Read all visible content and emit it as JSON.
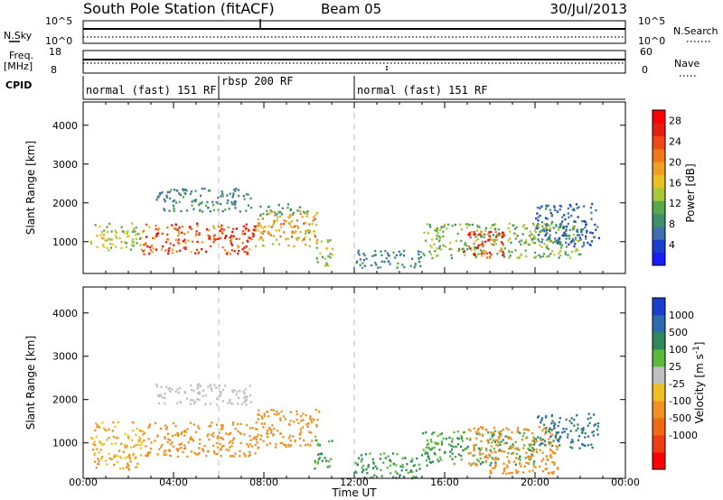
{
  "header": {
    "station": "South Pole Station (fitACF)",
    "beam": "Beam 05",
    "date": "30/Jul/2013"
  },
  "strip_labels": {
    "nsky": "N.Sky",
    "nsky_hi": "10^5",
    "nsky_lo": "10^0",
    "nsearch": "N.Search",
    "nsearch_hi": "10^5",
    "nsearch_lo": "10^0",
    "freq": "Freq.",
    "freq_unit": "[MHz]",
    "freq_hi": "18",
    "freq_lo": "8",
    "nave": "Nave",
    "nave_hi": "60",
    "nave_lo": "0",
    "cpid": "CPID"
  },
  "cpid_segments": [
    {
      "label": "normal (fast) 151 RF",
      "start_hour": 0.0,
      "end_hour": 6.0
    },
    {
      "label": "rbsp 200 RF",
      "start_hour": 6.0,
      "end_hour": 12.0
    },
    {
      "label": "normal (fast) 151 RF",
      "start_hour": 12.0,
      "end_hour": 24.0
    }
  ],
  "chart_data": [
    {
      "type": "heatmap",
      "name": "power",
      "ylabel": "Slant Range [km]",
      "xlabel": "Time UT",
      "x_ticks": [
        "00:00",
        "04:00",
        "08:00",
        "12:00",
        "16:00",
        "20:00",
        "00:00"
      ],
      "x_range_hours": [
        0,
        24
      ],
      "y_ticks": [
        1000,
        2000,
        3000,
        4000
      ],
      "ylim": [
        180,
        4600
      ],
      "colorbar_label": "Power [dB]",
      "colorbar_ticks": [
        4,
        8,
        12,
        16,
        20,
        24,
        28
      ],
      "colorbar_range": [
        0,
        30
      ],
      "colors": [
        "#1a1aff",
        "#1a3fd0",
        "#3f6eb2",
        "#3f8f6a",
        "#5aa84a",
        "#a8c83a",
        "#e8c020",
        "#f0a020",
        "#f07818",
        "#f04a14",
        "#e61e12",
        "#ff0000"
      ],
      "regions": [
        {
          "t0": 0.3,
          "t1": 2.6,
          "r0": 800,
          "r1": 1500,
          "value": 14
        },
        {
          "t0": 2.6,
          "t1": 7.6,
          "r0": 700,
          "r1": 1500,
          "value": 24
        },
        {
          "t0": 7.6,
          "t1": 10.4,
          "r0": 900,
          "r1": 1800,
          "value": 18
        },
        {
          "t0": 3.2,
          "t1": 7.4,
          "r0": 1800,
          "r1": 2400,
          "value": 8
        },
        {
          "t0": 7.8,
          "t1": 10.0,
          "r0": 1700,
          "r1": 2000,
          "value": 10
        },
        {
          "t0": 10.2,
          "t1": 11.0,
          "r0": 400,
          "r1": 1100,
          "value": 14
        },
        {
          "t0": 12.0,
          "t1": 15.0,
          "r0": 350,
          "r1": 800,
          "value": 8
        },
        {
          "t0": 15.0,
          "t1": 22.0,
          "r0": 600,
          "r1": 1500,
          "value": 12
        },
        {
          "t0": 16.8,
          "t1": 18.6,
          "r0": 600,
          "r1": 1300,
          "value": 26
        },
        {
          "t0": 20.0,
          "t1": 22.8,
          "r0": 900,
          "r1": 2000,
          "value": 6
        }
      ]
    },
    {
      "type": "heatmap",
      "name": "velocity",
      "ylabel": "Slant Range [km]",
      "xlabel": "Time UT",
      "x_ticks": [
        "00:00",
        "04:00",
        "08:00",
        "12:00",
        "16:00",
        "20:00",
        "00:00"
      ],
      "x_range_hours": [
        0,
        24
      ],
      "y_ticks": [
        1000,
        2000,
        3000,
        4000
      ],
      "ylim": [
        180,
        4600
      ],
      "colorbar_label": "Velocity [m s^-1]",
      "colorbar_ticks": [
        "1000",
        "500",
        "100",
        "25",
        "-25",
        "-100",
        "-500",
        "-1000"
      ],
      "colors": [
        "#1a3fd0",
        "#2e6ab0",
        "#2e8a5a",
        "#5ab83a",
        "#c0c0c0",
        "#f0c020",
        "#f09020",
        "#f06a14",
        "#f03c12",
        "#ff0000"
      ],
      "regions": [
        {
          "t0": 0.3,
          "t1": 2.6,
          "r0": 400,
          "r1": 1500,
          "value": -100
        },
        {
          "t0": 2.6,
          "t1": 7.6,
          "r0": 700,
          "r1": 1500,
          "value": -300
        },
        {
          "t0": 7.6,
          "t1": 10.4,
          "r0": 900,
          "r1": 1800,
          "value": -300
        },
        {
          "t0": 3.2,
          "t1": 7.4,
          "r0": 1900,
          "r1": 2400,
          "value": 0
        },
        {
          "t0": 10.2,
          "t1": 11.0,
          "r0": 400,
          "r1": 1100,
          "value": 100
        },
        {
          "t0": 12.0,
          "t1": 15.0,
          "r0": 200,
          "r1": 800,
          "value": 100
        },
        {
          "t0": 15.0,
          "t1": 20.0,
          "r0": 500,
          "r1": 1300,
          "value": 100
        },
        {
          "t0": 17.0,
          "t1": 21.0,
          "r0": 300,
          "r1": 1400,
          "value": -200
        },
        {
          "t0": 20.0,
          "t1": 22.8,
          "r0": 900,
          "r1": 1700,
          "value": 500
        }
      ]
    }
  ]
}
